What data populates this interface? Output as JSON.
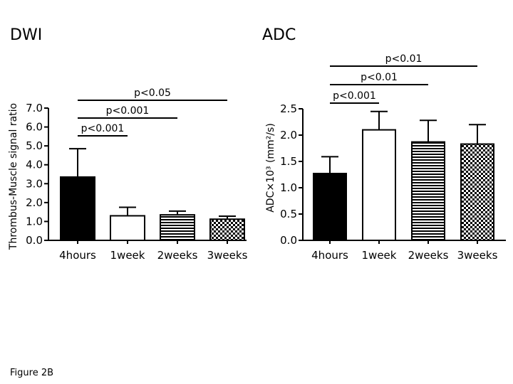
{
  "caption": "Figure 2B",
  "chart_data": [
    {
      "type": "bar",
      "title": "DWI",
      "ylabel": "Thrombus-Muscle signal ratio",
      "xlabel": "",
      "categories": [
        "4hours",
        "1week",
        "2weeks",
        "3weeks"
      ],
      "values": [
        3.35,
        1.3,
        1.35,
        1.12
      ],
      "error_upper": [
        4.85,
        1.75,
        1.55,
        1.28
      ],
      "ylim": [
        0,
        7
      ],
      "yticks": [
        "0.0",
        "1.0",
        "2.0",
        "3.0",
        "4.0",
        "5.0",
        "6.0",
        "7.0"
      ],
      "fills": [
        "solid-black",
        "white",
        "horizontal-stripes",
        "checkerboard"
      ],
      "significance": [
        {
          "from": 0,
          "to": 1,
          "label": "p<0.001"
        },
        {
          "from": 0,
          "to": 2,
          "label": "p<0.001"
        },
        {
          "from": 0,
          "to": 3,
          "label": "p<0.05"
        }
      ],
      "grid": false
    },
    {
      "type": "bar",
      "title": "ADC",
      "ylabel": "ADC×10³ (mm²/s)",
      "xlabel": "",
      "categories": [
        "4hours",
        "1week",
        "2weeks",
        "3weeks"
      ],
      "values": [
        1.27,
        2.1,
        1.87,
        1.83
      ],
      "error_upper": [
        1.59,
        2.45,
        2.28,
        2.2
      ],
      "ylim": [
        0,
        2.5
      ],
      "yticks": [
        "0.0",
        "0.5",
        "1.0",
        "1.5",
        "2.0",
        "2.5"
      ],
      "fills": [
        "solid-black",
        "white",
        "horizontal-stripes",
        "checkerboard"
      ],
      "significance": [
        {
          "from": 0,
          "to": 1,
          "label": "p<0.001"
        },
        {
          "from": 0,
          "to": 2,
          "label": "p<0.01"
        },
        {
          "from": 0,
          "to": 3,
          "label": "p<0.01"
        }
      ],
      "grid": false
    }
  ]
}
